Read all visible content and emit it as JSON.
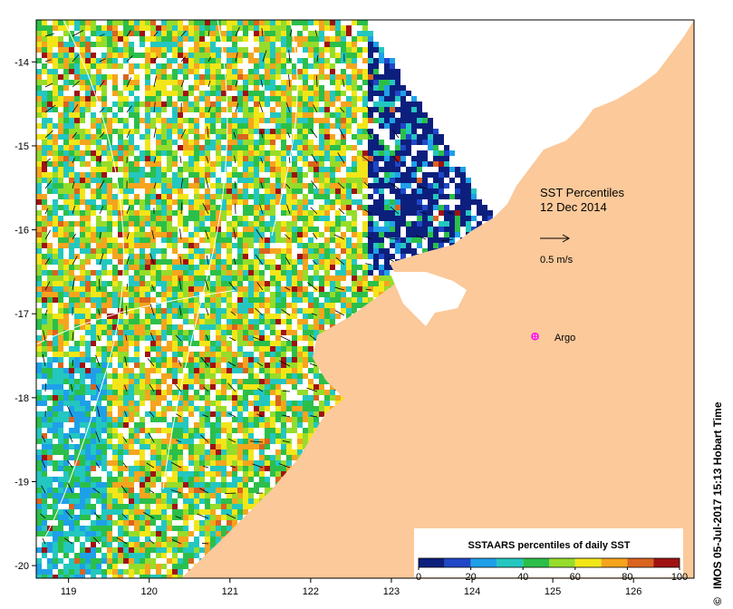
{
  "title": "SST Percentiles",
  "date": "12 Dec 2014",
  "vector_scale_label": "0.5 m/s",
  "argo_label": "Argo",
  "credit": "IMOS 05-Jul-2017 15:13 Hobart Time",
  "copyright_symbol": "©",
  "axes": {
    "x_ticks": [
      "119",
      "120",
      "121",
      "122",
      "123",
      "124",
      "125",
      "126"
    ],
    "y_ticks": [
      "-14",
      "-15",
      "-16",
      "-17",
      "-18",
      "-19",
      "-20"
    ],
    "lon_range": [
      118.6,
      126.75
    ],
    "lat_range": [
      -20.15,
      -13.5
    ]
  },
  "colorbar": {
    "title": "SSTAARS percentiles of daily SST",
    "tick_labels": [
      "0",
      "20",
      "40",
      "60",
      "80",
      "100"
    ],
    "colors": [
      "#0d1f7d",
      "#1f47c8",
      "#1ea0e8",
      "#23c7c0",
      "#2bbf4a",
      "#96dc2a",
      "#f2e619",
      "#f6a41e",
      "#d9641e",
      "#a01212"
    ]
  },
  "colors": {
    "land": "#fbc99a",
    "no_data": "#ffffff",
    "argo_marker": "#ff00ff",
    "contour": "#ffffff"
  },
  "argo": {
    "lon": 124.78,
    "lat": -17.27
  }
}
